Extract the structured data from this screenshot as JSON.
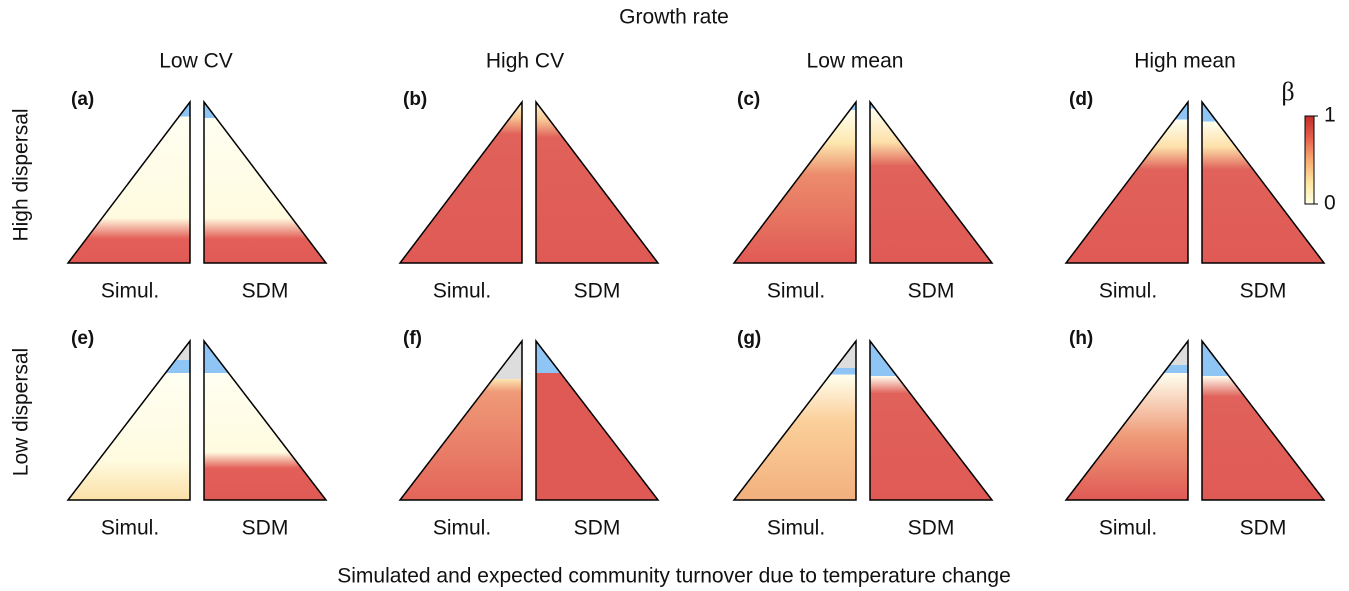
{
  "title": "Growth rate",
  "columns": [
    "Low CV",
    "High CV",
    "Low mean",
    "High mean"
  ],
  "rows": [
    "High dispersal",
    "Low dispersal"
  ],
  "half_labels": [
    "Simul.",
    "SDM"
  ],
  "x_label": "Simulated and expected community turnover due to temperature change",
  "colorbar": {
    "label": "β",
    "ticks": [
      0,
      1
    ],
    "colors": [
      "#ffffe0",
      "#fde4a0",
      "#f7ab6e",
      "#e8604c",
      "#c0302a"
    ]
  },
  "panels": [
    {
      "label": "(a)",
      "simul": [
        [
          0,
          "#8ec5f5"
        ],
        [
          0.09,
          "#8ec5f5"
        ],
        [
          0.09,
          "#fffff2"
        ],
        [
          0.72,
          "#fffbe0"
        ],
        [
          0.85,
          "#e35f58"
        ],
        [
          1,
          "#e05a55"
        ]
      ],
      "sdm": [
        [
          0,
          "#8ec5f5"
        ],
        [
          0.1,
          "#8ec5f5"
        ],
        [
          0.1,
          "#fffff2"
        ],
        [
          0.72,
          "#fffbe0"
        ],
        [
          0.85,
          "#e35f58"
        ],
        [
          1,
          "#e05a55"
        ]
      ]
    },
    {
      "label": "(b)",
      "simul": [
        [
          0,
          "#fff6d0"
        ],
        [
          0.1,
          "#f6c090"
        ],
        [
          0.2,
          "#e0625a"
        ],
        [
          1,
          "#e05a55"
        ]
      ],
      "sdm": [
        [
          0,
          "#fff6d0"
        ],
        [
          0.12,
          "#f6c090"
        ],
        [
          0.22,
          "#e0625a"
        ],
        [
          1,
          "#e05a55"
        ]
      ]
    },
    {
      "label": "(c)",
      "simul": [
        [
          0,
          "#8ec5f5"
        ],
        [
          0.05,
          "#8ec5f5"
        ],
        [
          0.05,
          "#fffff0"
        ],
        [
          0.25,
          "#fde8b0"
        ],
        [
          0.45,
          "#ec8c6c"
        ],
        [
          1,
          "#e05a55"
        ]
      ],
      "sdm": [
        [
          0,
          "#8ec5f5"
        ],
        [
          0.04,
          "#8ec5f5"
        ],
        [
          0.04,
          "#fffff0"
        ],
        [
          0.25,
          "#fde0a8"
        ],
        [
          0.4,
          "#e0625a"
        ],
        [
          1,
          "#e05a55"
        ]
      ]
    },
    {
      "label": "(d)",
      "simul": [
        [
          0,
          "#8ec5f5"
        ],
        [
          0.11,
          "#8ec5f5"
        ],
        [
          0.11,
          "#fffff0"
        ],
        [
          0.28,
          "#fde0a8"
        ],
        [
          0.42,
          "#e0625a"
        ],
        [
          1,
          "#e05a55"
        ]
      ],
      "sdm": [
        [
          0,
          "#8ec5f5"
        ],
        [
          0.12,
          "#8ec5f5"
        ],
        [
          0.12,
          "#fffff0"
        ],
        [
          0.28,
          "#fde0a8"
        ],
        [
          0.42,
          "#e0625a"
        ],
        [
          1,
          "#e05a55"
        ]
      ]
    },
    {
      "label": "(e)",
      "simul": [
        [
          0,
          "#dddddd"
        ],
        [
          0.12,
          "#dddddd"
        ],
        [
          0.12,
          "#8ec5f5"
        ],
        [
          0.2,
          "#8ec5f5"
        ],
        [
          0.2,
          "#fffff2"
        ],
        [
          0.75,
          "#fffbe0"
        ],
        [
          1,
          "#fbe0a8"
        ]
      ],
      "sdm": [
        [
          0,
          "#8ec5f5"
        ],
        [
          0.2,
          "#8ec5f5"
        ],
        [
          0.2,
          "#fffff2"
        ],
        [
          0.7,
          "#fffbe0"
        ],
        [
          0.8,
          "#e35f58"
        ],
        [
          1,
          "#e05a55"
        ]
      ]
    },
    {
      "label": "(f)",
      "simul": [
        [
          0,
          "#dddddd"
        ],
        [
          0.24,
          "#dddddd"
        ],
        [
          0.24,
          "#fbe3b0"
        ],
        [
          0.32,
          "#ef9a78"
        ],
        [
          1,
          "#e3655a"
        ]
      ],
      "sdm": [
        [
          0,
          "#8ec5f5"
        ],
        [
          0.2,
          "#8ec5f5"
        ],
        [
          0.2,
          "#e05a55"
        ],
        [
          1,
          "#e05a55"
        ]
      ]
    },
    {
      "label": "(g)",
      "simul": [
        [
          0,
          "#dddddd"
        ],
        [
          0.17,
          "#dddddd"
        ],
        [
          0.17,
          "#8ec5f5"
        ],
        [
          0.21,
          "#8ec5f5"
        ],
        [
          0.21,
          "#fffff0"
        ],
        [
          0.5,
          "#fbd09a"
        ],
        [
          1,
          "#f2b07e"
        ]
      ],
      "sdm": [
        [
          0,
          "#8ec5f5"
        ],
        [
          0.22,
          "#8ec5f5"
        ],
        [
          0.22,
          "#fffff0"
        ],
        [
          0.33,
          "#e0625a"
        ],
        [
          1,
          "#e05a55"
        ]
      ]
    },
    {
      "label": "(h)",
      "simul": [
        [
          0,
          "#dddddd"
        ],
        [
          0.15,
          "#dddddd"
        ],
        [
          0.15,
          "#8ec5f5"
        ],
        [
          0.2,
          "#8ec5f5"
        ],
        [
          0.2,
          "#fffff0"
        ],
        [
          0.6,
          "#ef9a78"
        ],
        [
          1,
          "#e05a55"
        ]
      ],
      "sdm": [
        [
          0,
          "#8ec5f5"
        ],
        [
          0.22,
          "#8ec5f5"
        ],
        [
          0.22,
          "#fffff0"
        ],
        [
          0.35,
          "#e0625a"
        ],
        [
          1,
          "#e05a55"
        ]
      ]
    }
  ]
}
